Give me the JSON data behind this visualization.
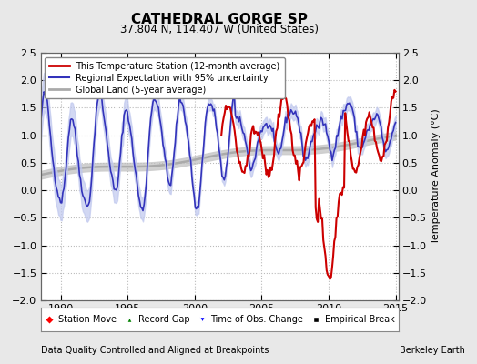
{
  "title": "CATHEDRAL GORGE SP",
  "subtitle": "37.804 N, 114.407 W (United States)",
  "ylabel": "Temperature Anomaly (°C)",
  "footer_left": "Data Quality Controlled and Aligned at Breakpoints",
  "footer_right": "Berkeley Earth",
  "xlim": [
    1988.5,
    2015.2
  ],
  "ylim": [
    -2.0,
    2.5
  ],
  "yticks": [
    -2,
    -1.5,
    -1,
    -0.5,
    0,
    0.5,
    1,
    1.5,
    2,
    2.5
  ],
  "xticks": [
    1990,
    1995,
    2000,
    2005,
    2010,
    2015
  ],
  "bg_color": "#e8e8e8",
  "plot_bg_color": "#ffffff",
  "red_color": "#cc0000",
  "blue_color": "#3333bb",
  "blue_fill_color": "#c0c8ee",
  "gray_color": "#aaaaaa",
  "gray_fill_color": "#cccccc"
}
